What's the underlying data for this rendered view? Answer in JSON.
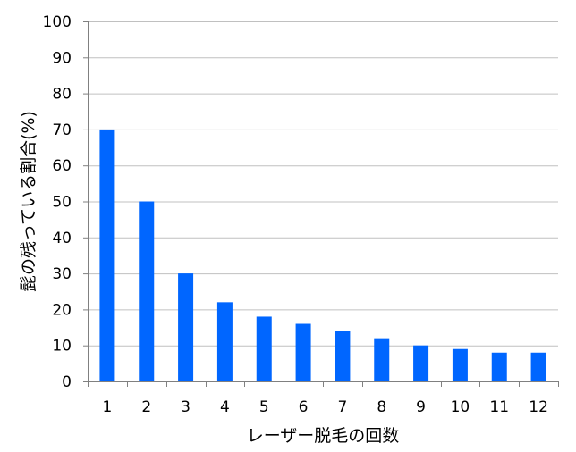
{
  "chart_data": {
    "type": "bar",
    "title": "",
    "xlabel": "レーザー脱毛の回数",
    "ylabel": "髭の残っている割合(%)",
    "categories": [
      "1",
      "2",
      "3",
      "4",
      "5",
      "6",
      "7",
      "8",
      "9",
      "10",
      "11",
      "12"
    ],
    "values": [
      70,
      50,
      30,
      22,
      18,
      16,
      14,
      12,
      10,
      9,
      8,
      8
    ],
    "ylim": [
      0,
      100
    ],
    "yticks": [
      0,
      10,
      20,
      30,
      40,
      50,
      60,
      70,
      80,
      90,
      100
    ],
    "grid": true,
    "legend": "none",
    "colors": {
      "bar": "#0066ff",
      "grid": "#c0c0c0",
      "axis": "#808080"
    }
  }
}
